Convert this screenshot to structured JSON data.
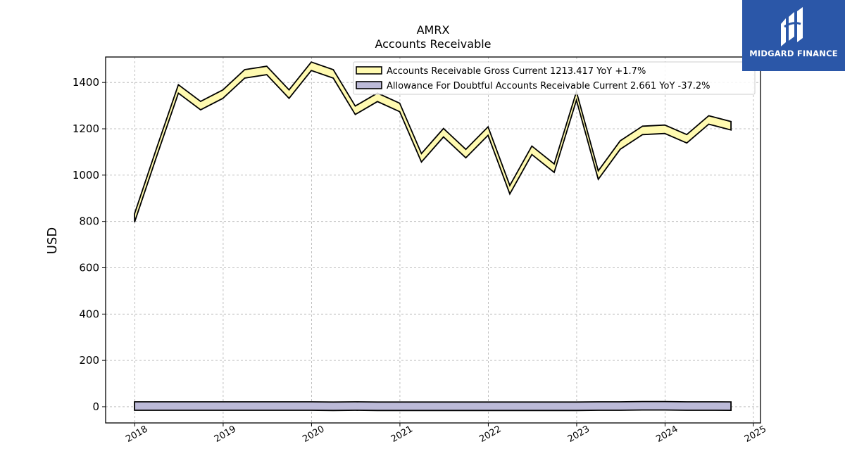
{
  "brand": {
    "name": "MIDGARD FINANCE",
    "logo_icon": "midgard-logo-icon",
    "background_color": "#2b57a8"
  },
  "chart_data": {
    "type": "line",
    "title": "AMRX",
    "subtitle": "Accounts Receivable",
    "xlabel": "",
    "ylabel": "USD",
    "xlim": [
      2017.67,
      2025.08
    ],
    "ylim": [
      -70,
      1510
    ],
    "x_ticks": [
      "2018",
      "2019",
      "2020",
      "2021",
      "2022",
      "2023",
      "2024",
      "2025"
    ],
    "y_ticks": [
      "0",
      "200",
      "400",
      "600",
      "800",
      "1000",
      "1200",
      "1400"
    ],
    "grid": true,
    "legend_position": "top-right",
    "series": [
      {
        "name": "Accounts Receivable Gross Current",
        "legend_label": "Accounts Receivable Gross Current  1213.417 YoY +1.7%",
        "color": "#fffab0",
        "edge_color": "#000000",
        "x": [
          "2017-12-31",
          "2018-03-31",
          "2018-06-30",
          "2018-09-30",
          "2018-12-31",
          "2019-03-31",
          "2019-06-30",
          "2019-09-30",
          "2019-12-31",
          "2020-03-31",
          "2020-06-30",
          "2020-09-30",
          "2020-12-31",
          "2021-03-31",
          "2021-06-30",
          "2021-09-30",
          "2021-12-31",
          "2022-03-31",
          "2022-06-30",
          "2022-09-30",
          "2022-12-31",
          "2023-03-31",
          "2023-06-30",
          "2023-09-30",
          "2023-12-31",
          "2024-03-31",
          "2024-06-30",
          "2024-09-30"
        ],
        "values": [
          815,
          1095,
          1372,
          1300,
          1350,
          1437,
          1452,
          1350,
          1470,
          1437,
          1280,
          1336,
          1292,
          1075,
          1183,
          1093,
          1190,
          937,
          1107,
          1030,
          1342,
          1000,
          1130,
          1193,
          1198,
          1157,
          1238,
          1213
        ]
      },
      {
        "name": "Allowance For Doubtful Accounts Receivable Current",
        "legend_label": "Allowance For Doubtful Accounts Receivable Current  2.661 YoY -37.2%",
        "color": "#bcbad8",
        "edge_color": "#000000",
        "x": [
          "2017-12-31",
          "2018-03-31",
          "2018-06-30",
          "2018-09-30",
          "2018-12-31",
          "2019-03-31",
          "2019-06-30",
          "2019-09-30",
          "2019-12-31",
          "2020-03-31",
          "2020-06-30",
          "2020-09-30",
          "2020-12-31",
          "2021-03-31",
          "2021-06-30",
          "2021-09-30",
          "2021-12-31",
          "2022-03-31",
          "2022-06-30",
          "2022-09-30",
          "2022-12-31",
          "2023-03-31",
          "2023-06-30",
          "2023-09-30",
          "2023-12-31",
          "2024-03-31",
          "2024-06-30",
          "2024-09-30"
        ],
        "values": [
          3,
          3,
          3,
          3,
          3,
          3,
          3,
          3,
          3,
          2,
          3,
          2,
          2,
          2,
          2,
          2,
          2,
          2,
          2,
          2,
          2,
          3,
          3,
          4,
          4,
          3,
          3,
          2.661
        ]
      }
    ]
  }
}
